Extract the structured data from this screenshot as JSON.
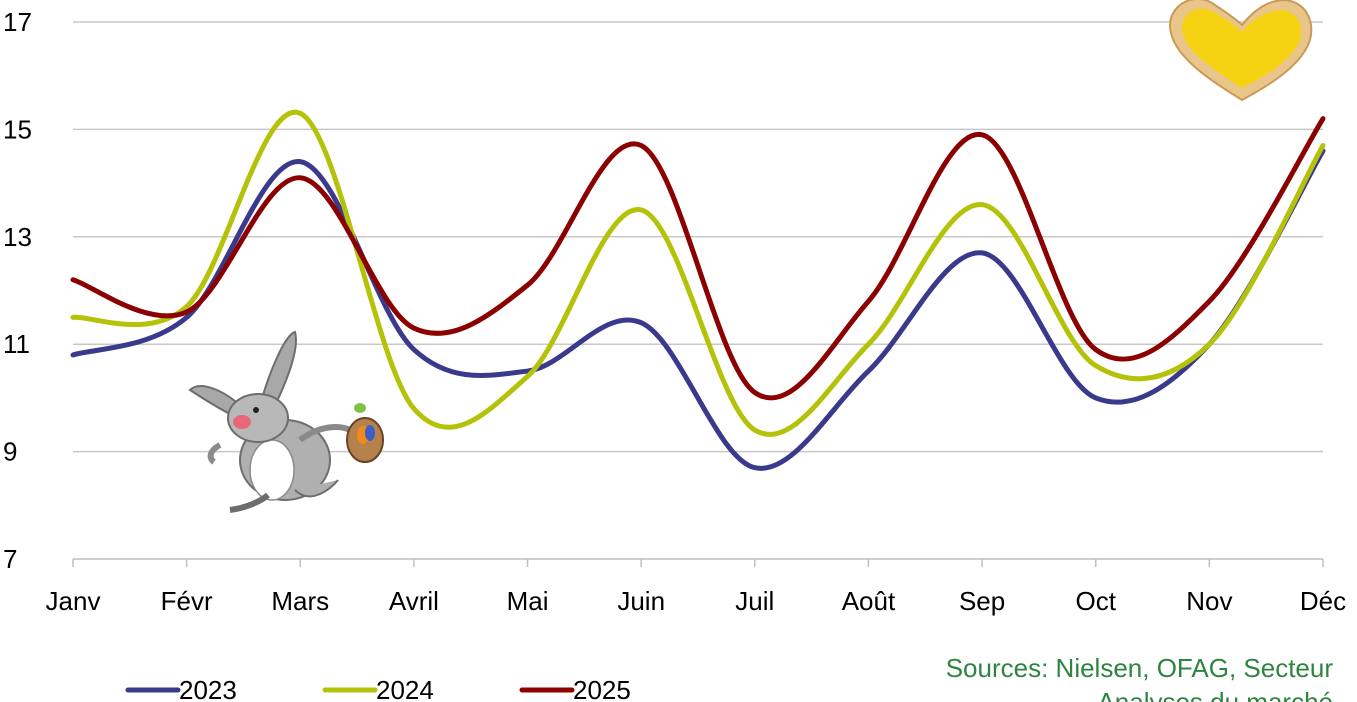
{
  "chart_data": {
    "type": "line",
    "categories": [
      "Janv",
      "Févr",
      "Mars",
      "Avril",
      "Mai",
      "Juin",
      "Juil",
      "Août",
      "Sep",
      "Oct",
      "Nov",
      "Déc"
    ],
    "series": [
      {
        "name": "2023",
        "color": "#3a3a8c",
        "values": [
          10.8,
          11.5,
          14.4,
          10.9,
          10.5,
          11.4,
          8.7,
          10.5,
          12.7,
          10.0,
          11.0,
          14.6
        ]
      },
      {
        "name": "2024",
        "color": "#b5c20a",
        "values": [
          11.5,
          11.7,
          15.3,
          9.8,
          10.4,
          13.5,
          9.4,
          11.0,
          13.6,
          10.6,
          11.0,
          14.7
        ]
      },
      {
        "name": "2025",
        "color": "#8b0000",
        "values": [
          12.2,
          11.6,
          14.1,
          11.3,
          12.1,
          14.7,
          10.1,
          11.8,
          14.9,
          10.9,
          11.8,
          15.2
        ]
      }
    ],
    "yticks": [
      7,
      9,
      11,
      13,
      15,
      17
    ],
    "ylim": [
      7,
      17
    ],
    "grid": true,
    "legend_position": "bottom-left",
    "source_lines": [
      "Sources: Nielsen, OFAG, Secteur",
      "Analyses du marché"
    ]
  },
  "decorations": {
    "bunny_icon": "bunny-with-easter-basket-icon",
    "cookie_icon": "heart-cookie-icon"
  }
}
